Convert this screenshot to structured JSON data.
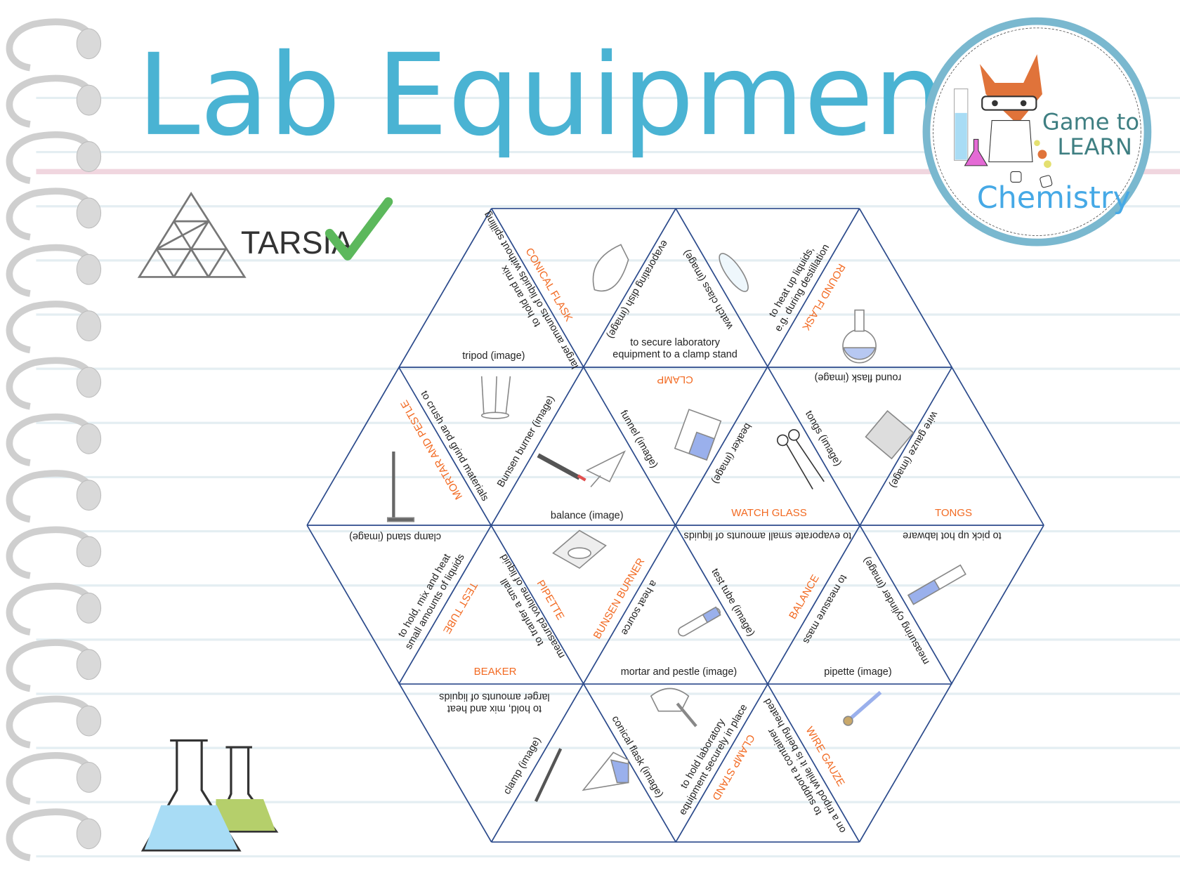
{
  "header": {
    "title": "Lab Equipment",
    "activity_label": "TARSIA",
    "logo": {
      "line1": "Game to",
      "line2": "LEARN",
      "line3": "Chemistry"
    }
  },
  "colors": {
    "title": "#4ab3d3",
    "term": "#f26a22",
    "grid_line": "#2b4a8b",
    "check": "#5cb85c",
    "logo_ring": "#7ab8cf"
  },
  "puzzle": {
    "labels": [
      {
        "kind": "image-label",
        "lines": [
          "tripod (image)"
        ]
      },
      {
        "kind": "definition",
        "lines": [
          "to hold and mix",
          "larger amounts of liquids without spilling"
        ]
      },
      {
        "kind": "term",
        "lines": [
          "CONICAL FLASK"
        ]
      },
      {
        "kind": "image-label",
        "lines": [
          "evaporating dish (image)"
        ]
      },
      {
        "kind": "definition",
        "lines": [
          "to secure laboratory",
          "equipment to a clamp stand"
        ]
      },
      {
        "kind": "image-label",
        "lines": [
          "watch class (image)"
        ]
      },
      {
        "kind": "definition",
        "lines": [
          "to heat up liquids,",
          "e.g. during destillation"
        ]
      },
      {
        "kind": "term",
        "lines": [
          "ROUND FLASK"
        ]
      },
      {
        "kind": "term",
        "lines": [
          "CLAMP"
        ]
      },
      {
        "kind": "image-label",
        "lines": [
          "round flask (image)"
        ]
      },
      {
        "kind": "term",
        "lines": [
          "MORTAR AND PESTLE"
        ]
      },
      {
        "kind": "definition",
        "lines": [
          "to crush and grind materials"
        ]
      },
      {
        "kind": "image-label",
        "lines": [
          "Bunsen burner (image)"
        ]
      },
      {
        "kind": "image-label",
        "lines": [
          "balance (image)"
        ]
      },
      {
        "kind": "image-label",
        "lines": [
          "funnel (image)"
        ]
      },
      {
        "kind": "image-label",
        "lines": [
          "beaker (image)"
        ]
      },
      {
        "kind": "term",
        "lines": [
          "WATCH GLASS"
        ]
      },
      {
        "kind": "image-label",
        "lines": [
          "tongs (image)"
        ]
      },
      {
        "kind": "image-label",
        "lines": [
          "wire gauze (image)"
        ]
      },
      {
        "kind": "term",
        "lines": [
          "TONGS"
        ]
      },
      {
        "kind": "image-label",
        "lines": [
          "clamp stand (image)"
        ]
      },
      {
        "kind": "definition",
        "lines": [
          "to hold, mix and heat",
          "small amounts of liquids"
        ]
      },
      {
        "kind": "term",
        "lines": [
          "TEST TUBE"
        ]
      },
      {
        "kind": "term",
        "lines": [
          "BEAKER"
        ]
      },
      {
        "kind": "definition",
        "lines": [
          "to tranfer a small",
          "measured volume of liquid"
        ]
      },
      {
        "kind": "term",
        "lines": [
          "PIPETTE"
        ]
      },
      {
        "kind": "term",
        "lines": [
          "BUNSEN BURNER"
        ]
      },
      {
        "kind": "definition",
        "lines": [
          "a heat source"
        ]
      },
      {
        "kind": "definition",
        "lines": [
          "to evaporate small amounts of liquids"
        ]
      },
      {
        "kind": "image-label",
        "lines": [
          "test tube (image)"
        ]
      },
      {
        "kind": "image-label",
        "lines": [
          "mortar and pestle (image)"
        ]
      },
      {
        "kind": "term",
        "lines": [
          "BALANCE"
        ]
      },
      {
        "kind": "definition",
        "lines": [
          "to measure mass"
        ]
      },
      {
        "kind": "image-label",
        "lines": [
          "pipette (image)"
        ]
      },
      {
        "kind": "definition",
        "lines": [
          "to pick up hot labware"
        ]
      },
      {
        "kind": "image-label",
        "lines": [
          "measuring cylinder (image)"
        ]
      },
      {
        "kind": "definition",
        "lines": [
          "to hold, mix and heat",
          "larger amounts of liquids"
        ]
      },
      {
        "kind": "image-label",
        "lines": [
          "clamp (image)"
        ]
      },
      {
        "kind": "image-label",
        "lines": [
          "conical flask (image)"
        ]
      },
      {
        "kind": "definition",
        "lines": [
          "to hold laboratory",
          "equipment securely in place"
        ]
      },
      {
        "kind": "term",
        "lines": [
          "CLAMP STAND"
        ]
      },
      {
        "kind": "definition",
        "lines": [
          "to support a container",
          "on a tripod while it is being heated"
        ]
      },
      {
        "kind": "term",
        "lines": [
          "WIRE GAUZE"
        ]
      }
    ]
  }
}
